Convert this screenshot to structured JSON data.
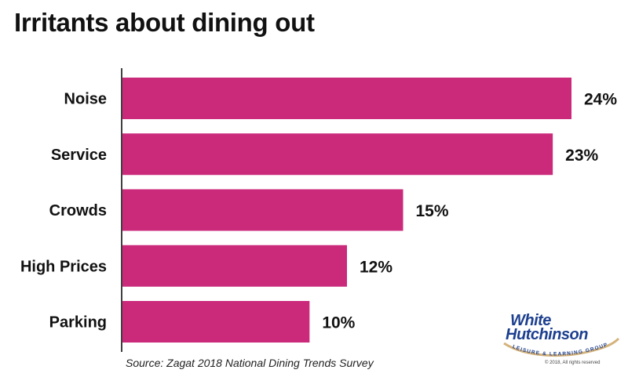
{
  "title": "Irritants about dining out",
  "source": "Source: Zagat 2018 National Dining Trends Survey",
  "colors": {
    "bar": "#cb2a7b",
    "axis": "#000000",
    "text": "#111111",
    "logo_blue": "#1c3f8f",
    "logo_gold": "#d4b27a"
  },
  "logo": {
    "line1": "White",
    "line2": "Hutchinson",
    "tagline": "LEISURE & LEARNING GROUP",
    "copyright": "© 2018, All rights reserved"
  },
  "chart_data": {
    "type": "bar",
    "orientation": "horizontal",
    "title": "Irritants about dining out",
    "categories": [
      "Noise",
      "Service",
      "Crowds",
      "High Prices",
      "Parking"
    ],
    "values": [
      24,
      23,
      15,
      12,
      10
    ],
    "value_labels": [
      "24%",
      "23%",
      "15%",
      "12%",
      "10%"
    ],
    "unit": "%",
    "xlim": [
      0,
      24
    ],
    "grid": false,
    "legend": "none"
  }
}
